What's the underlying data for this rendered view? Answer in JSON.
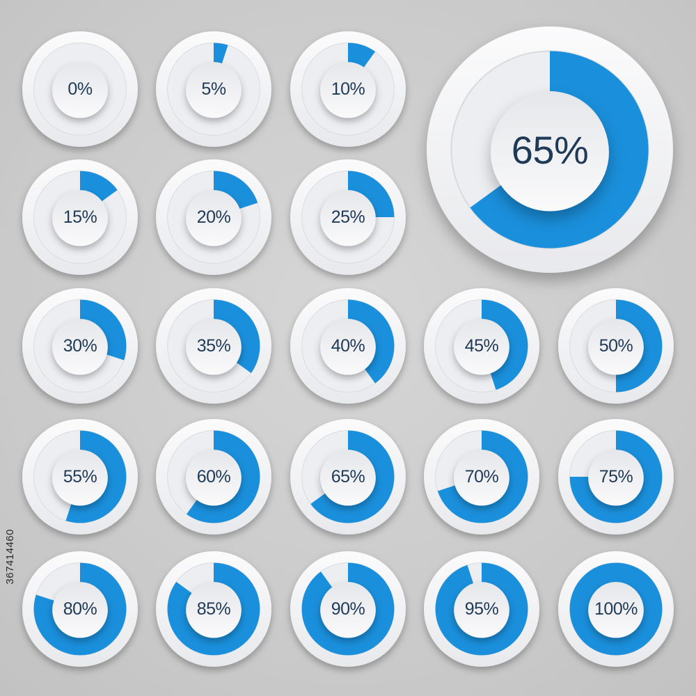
{
  "colors": {
    "background": "#cbcbcb",
    "fill": "#1a8fdb",
    "ring": "#f3f4f6",
    "label": "#1f3a56"
  },
  "large_gauge": {
    "value": 65,
    "label": "65%"
  },
  "gauges": [
    {
      "value": 0,
      "label": "0%"
    },
    {
      "value": 5,
      "label": "5%"
    },
    {
      "value": 10,
      "label": "10%"
    },
    {
      "value": 15,
      "label": "15%"
    },
    {
      "value": 20,
      "label": "20%"
    },
    {
      "value": 25,
      "label": "25%"
    },
    {
      "value": 30,
      "label": "30%"
    },
    {
      "value": 35,
      "label": "35%"
    },
    {
      "value": 40,
      "label": "40%"
    },
    {
      "value": 45,
      "label": "45%"
    },
    {
      "value": 50,
      "label": "50%"
    },
    {
      "value": 55,
      "label": "55%"
    },
    {
      "value": 60,
      "label": "60%"
    },
    {
      "value": 65,
      "label": "65%"
    },
    {
      "value": 70,
      "label": "70%"
    },
    {
      "value": 75,
      "label": "75%"
    },
    {
      "value": 80,
      "label": "80%"
    },
    {
      "value": 85,
      "label": "85%"
    },
    {
      "value": 90,
      "label": "90%"
    },
    {
      "value": 95,
      "label": "95%"
    },
    {
      "value": 100,
      "label": "100%"
    }
  ],
  "stock_id": "367414460"
}
